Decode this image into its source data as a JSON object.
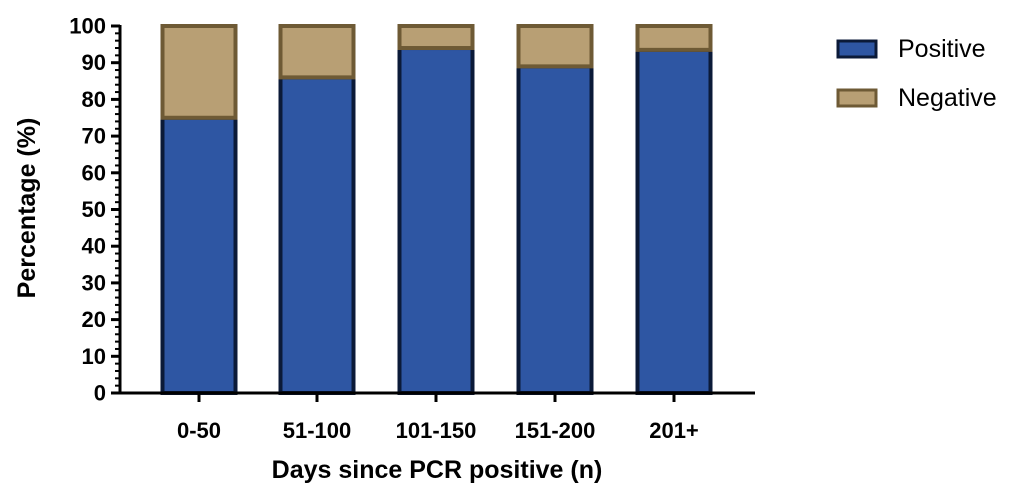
{
  "chart_data": {
    "type": "bar",
    "stacked": true,
    "categories": [
      "0-50",
      "51-100",
      "101-150",
      "151-200",
      "201+"
    ],
    "series": [
      {
        "name": "Positive",
        "values": [
          75,
          86,
          94,
          89,
          93.5
        ]
      },
      {
        "name": "Negative",
        "values": [
          25,
          14,
          6,
          11,
          6.5
        ]
      }
    ],
    "xlabel": "Days since PCR positive (n)",
    "ylabel": "Percentage (%)",
    "ylim": [
      0,
      100
    ],
    "yticks": [
      "0",
      "10",
      "20",
      "30",
      "40",
      "50",
      "60",
      "70",
      "80",
      "90",
      "100"
    ],
    "grid": false,
    "legend_position": "right",
    "colors": {
      "Positive": "#2e56a3",
      "Negative": "#b89f74",
      "positive_edge": "#0b1a38",
      "negative_edge": "#6e5a35",
      "axis": "#000000"
    }
  }
}
